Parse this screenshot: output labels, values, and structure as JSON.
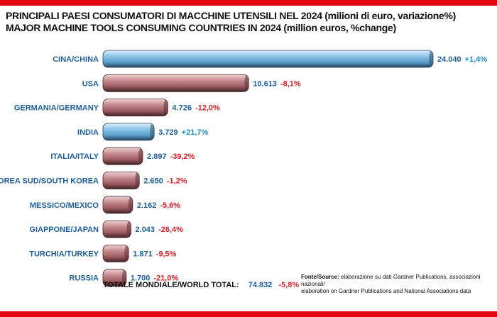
{
  "title": {
    "line1": "PRINCIPALI PAESI CONSUMATORI DI MACCHINE UTENSILI NEL 2024 (milioni di euro, variazione%)",
    "line2": "MAJOR MACHINE TOOLS CONSUMING COUNTRIES IN 2024 (million euros, %change)"
  },
  "chart_data": {
    "type": "bar",
    "orientation": "horizontal",
    "categories": [
      "CINA/CHINA",
      "USA",
      "GERMANIA/GERMANY",
      "INDIA",
      "ITALIA/ITALY",
      "COREA SUD/SOUTH KOREA",
      "MESSICO/MEXICO",
      "GIAPPONE/JAPAN",
      "TURCHIA/TURKEY",
      "RUSSIA"
    ],
    "values": [
      24040,
      10613,
      4726,
      3729,
      2897,
      2650,
      2162,
      2043,
      1871,
      1700
    ],
    "value_labels": [
      "24.040",
      "10.613",
      "4.726",
      "3.729",
      "2.897",
      "2.650",
      "2.162",
      "2.043",
      "1.871",
      "1.700"
    ],
    "changes": [
      "+1,4%",
      "-8,1%",
      "-12,0%",
      "+21,7%",
      "-39,2%",
      "-1,2%",
      "-5,6%",
      "-26,4%",
      "-9,5%",
      "-21,0%"
    ],
    "xlim": [
      0,
      24040
    ],
    "grid": false,
    "bar_colors": {
      "growth": "#6aaed6",
      "decline": "#b0676c"
    }
  },
  "total": {
    "label": "TOTALE MONDIALE/WORLD TOTAL:",
    "value": "74.832",
    "change": "-5,8%"
  },
  "source": {
    "head": "Fonte/Source:",
    "line1": "elaborazione su dati Gardner Publications, associazioni nazionali/",
    "line2": "elaboration on Gardner Publications and National Associations data"
  },
  "colors": {
    "frame": "#e30613",
    "label_blue": "#1d5f9e",
    "positive": "#1a8fc9",
    "negative": "#d6202a"
  }
}
